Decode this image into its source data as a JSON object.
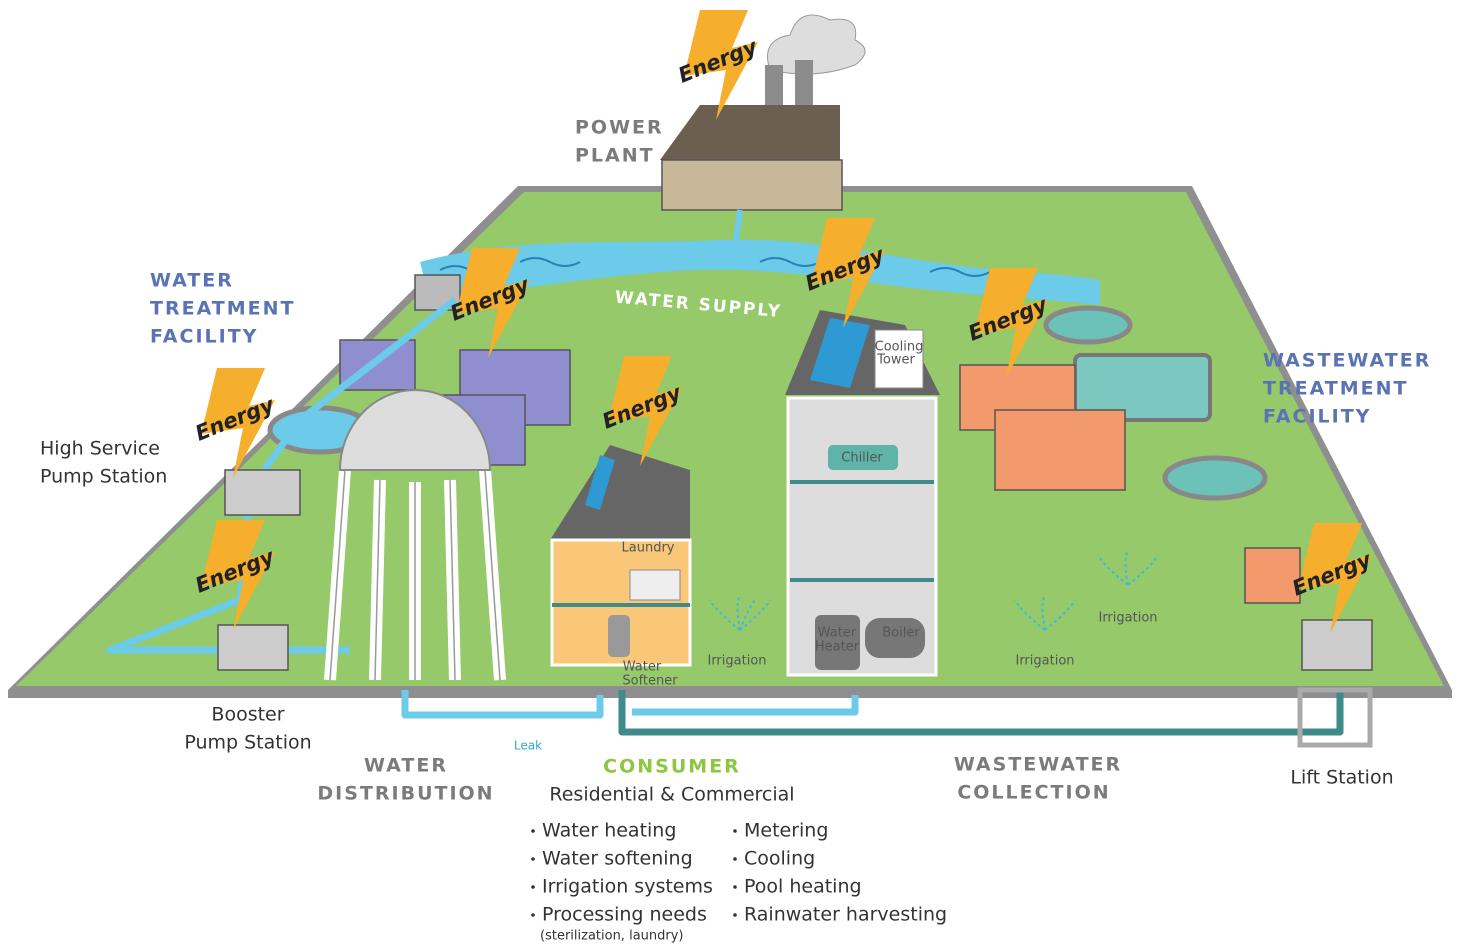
{
  "power_plant": {
    "label_lines": [
      "POWER",
      "PLANT"
    ]
  },
  "water_supply": {
    "label": "WATER SUPPLY"
  },
  "water_treatment": {
    "label_lines": [
      "WATER",
      "TREATMENT",
      "FACILITY"
    ]
  },
  "high_service_pump": {
    "label_lines": [
      "High Service",
      "Pump Station"
    ]
  },
  "booster_pump": {
    "label_lines": [
      "Booster",
      "Pump Station"
    ]
  },
  "water_distribution": {
    "label_lines": [
      "WATER",
      "DISTRIBUTION"
    ]
  },
  "consumer": {
    "title": "CONSUMER",
    "subtitle": "Residential & Commercial",
    "uses_left": [
      "Water heating",
      "Water softening",
      "Irrigation systems",
      "Processing needs"
    ],
    "uses_left_note": "(sterilization, laundry)",
    "uses_right": [
      "Metering",
      "Cooling",
      "Pool heating",
      "Rainwater harvesting"
    ]
  },
  "wastewater_collection": {
    "label_lines": [
      "WASTEWATER",
      "COLLECTION"
    ]
  },
  "wastewater_treatment": {
    "label_lines": [
      "WASTEWATER",
      "TREATMENT",
      "FACILITY"
    ]
  },
  "lift_station": {
    "label": "Lift Station"
  },
  "fixtures": {
    "laundry": "Laundry",
    "water_softener": [
      "Water",
      "Softener"
    ],
    "cooling_tower": [
      "Cooling",
      "Tower"
    ],
    "chiller": "Chiller",
    "water_heater": [
      "Water",
      "Heater"
    ],
    "boiler": "Boiler",
    "leak": "Leak",
    "irrigation": [
      "Irrigation",
      "Irrigation",
      "Irrigation"
    ]
  },
  "energy_badges": [
    "Energy",
    "Energy",
    "Energy",
    "Energy",
    "Energy",
    "Energy",
    "Energy",
    "Energy"
  ]
}
